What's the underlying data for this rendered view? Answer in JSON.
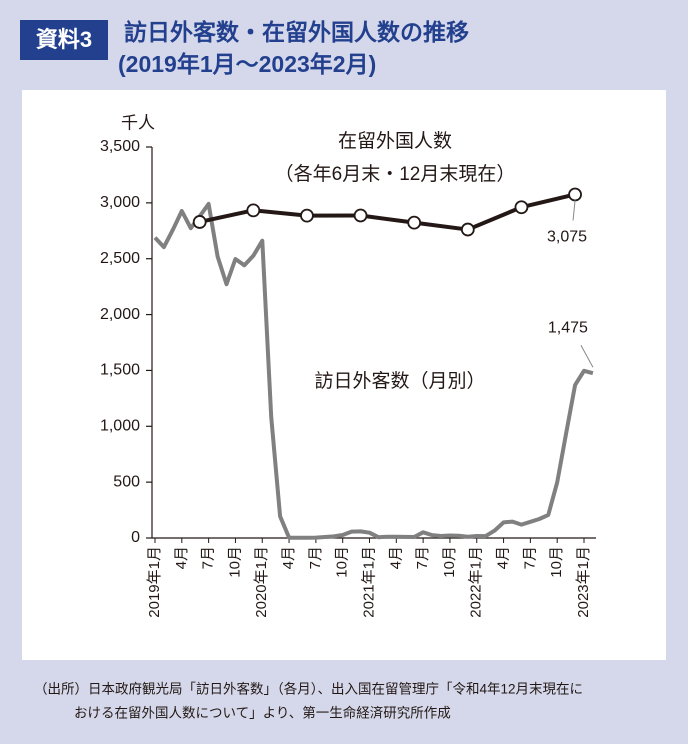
{
  "chart_data": {
    "type": "line",
    "badge": "資料3",
    "title": "訪日外客数・在留外国人数の推移",
    "subtitle": "(2019年1月～2023年2月)",
    "y_unit": "千人",
    "annotations": [
      "在留外国人数",
      "（各年6月末・12月末現在）",
      "訪日外客数（月別）"
    ],
    "source": [
      "（出所）日本政府観光局「訪日外客数」（各月）、出入国在留管理庁「令和4年12月末現在に",
      "おける在留外国人数について」より、第一生命経済研究所作成"
    ],
    "categories": [
      "2019年1月",
      null,
      null,
      "4月",
      null,
      null,
      "7月",
      null,
      null,
      "10月",
      null,
      null,
      "2020年1月",
      null,
      null,
      "4月",
      null,
      null,
      "7月",
      null,
      null,
      "10月",
      null,
      null,
      "2021年1月",
      null,
      null,
      "4月",
      null,
      null,
      "7月",
      null,
      null,
      "10月",
      null,
      null,
      "2022年1月",
      null,
      null,
      "4月",
      null,
      null,
      "7月",
      null,
      null,
      "10月",
      null,
      null,
      "2023年1月",
      null
    ],
    "ylim": [
      0,
      3500
    ],
    "yticks": [
      0,
      500,
      {
        "value": 1000,
        "label": "1,000"
      },
      {
        "value": 1500,
        "label": "1,500"
      },
      {
        "value": 2000,
        "label": "2,000"
      },
      {
        "value": 2500,
        "label": "2,500"
      },
      {
        "value": 3000,
        "label": "3,000"
      },
      {
        "value": 3500,
        "label": "3,500"
      }
    ],
    "grid": false,
    "series": [
      {
        "name": "在留外国人数",
        "color": "#231815",
        "values": [
          null,
          null,
          null,
          null,
          null,
          2829,
          null,
          null,
          null,
          null,
          null,
          2933,
          null,
          null,
          null,
          null,
          null,
          2886,
          null,
          null,
          null,
          null,
          null,
          2887,
          null,
          null,
          null,
          null,
          null,
          2823,
          null,
          null,
          null,
          null,
          null,
          2761,
          null,
          null,
          null,
          null,
          null,
          2961,
          null,
          null,
          null,
          null,
          null,
          3075,
          null,
          null
        ],
        "value_labels": [
          null,
          null,
          null,
          null,
          null,
          null,
          null,
          null,
          null,
          null,
          null,
          null,
          null,
          null,
          null,
          null,
          null,
          null,
          null,
          null,
          null,
          null,
          null,
          null,
          null,
          null,
          null,
          null,
          null,
          null,
          null,
          null,
          null,
          null,
          null,
          null,
          null,
          null,
          null,
          null,
          null,
          null,
          null,
          null,
          null,
          null,
          null,
          "3,075",
          null,
          null
        ]
      },
      {
        "name": "訪日外客数（月別）",
        "color": "#808080",
        "values": [
          2689,
          2604,
          2760,
          2927,
          2773,
          2880,
          2991,
          2520,
          2272,
          2497,
          2441,
          2526,
          2661,
          1085,
          194,
          3,
          2,
          3,
          4,
          9,
          14,
          27,
          57,
          59,
          47,
          7,
          12,
          11,
          10,
          9,
          51,
          26,
          18,
          22,
          21,
          12,
          18,
          17,
          66,
          140,
          147,
          120,
          145,
          170,
          207,
          499,
          935,
          1370,
          1497,
          1475
        ],
        "value_labels": [
          null,
          null,
          null,
          null,
          null,
          null,
          null,
          null,
          null,
          null,
          null,
          null,
          null,
          null,
          null,
          null,
          null,
          null,
          null,
          null,
          null,
          null,
          null,
          null,
          null,
          null,
          null,
          null,
          null,
          null,
          null,
          null,
          null,
          null,
          null,
          null,
          null,
          null,
          null,
          null,
          null,
          null,
          null,
          null,
          null,
          null,
          null,
          null,
          null,
          "1,475"
        ]
      }
    ]
  }
}
